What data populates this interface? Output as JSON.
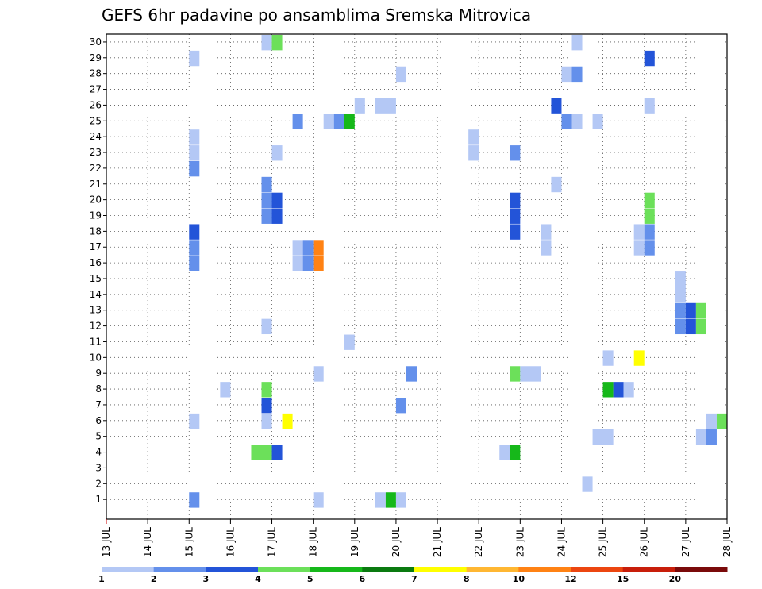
{
  "chart_data": {
    "type": "heatmap",
    "title": "GEFS 6hr padavine po ansamblima Sremska Mitrovica",
    "xlabel": "",
    "ylabel": "",
    "x_ticks": [
      "13 JUL",
      "14 JUL",
      "15 JUL",
      "16 JUL",
      "17 JUL",
      "18 JUL",
      "19 JUL",
      "20 JUL",
      "21 JUL",
      "22 JUL",
      "23 JUL",
      "24 JUL",
      "25 JUL",
      "26 JUL",
      "27 JUL",
      "28 JUL"
    ],
    "x_range": [
      13,
      28
    ],
    "y_ticks": [
      "1",
      "2",
      "3",
      "4",
      "5",
      "6",
      "7",
      "8",
      "9",
      "10",
      "11",
      "12",
      "13",
      "14",
      "15",
      "16",
      "17",
      "18",
      "19",
      "20",
      "21",
      "22",
      "23",
      "24",
      "25",
      "26",
      "27",
      "28",
      "29",
      "30"
    ],
    "y_range": [
      1,
      30
    ],
    "grid": true,
    "legend_placement": "bottom",
    "legend": {
      "labels": [
        "1",
        "2",
        "3",
        "4",
        "5",
        "6",
        "7",
        "8",
        "10",
        "12",
        "15",
        "20"
      ],
      "colors": [
        "#b4c8f5",
        "#6490eb",
        "#2354d8",
        "#6ce05a",
        "#16b81a",
        "#0a7a10",
        "#ffff00",
        "#ffb732",
        "#ff8214",
        "#ec4610",
        "#c81e0a",
        "#7a0a0a"
      ]
    },
    "cells": [
      [
        30,
        16.75,
        0.25,
        1
      ],
      [
        30,
        17.0,
        0.25,
        4
      ],
      [
        30,
        24.25,
        0.25,
        1
      ],
      [
        29,
        15.0,
        0.25,
        1
      ],
      [
        29,
        26.0,
        0.25,
        3
      ],
      [
        28,
        20.0,
        0.25,
        1
      ],
      [
        28,
        24.0,
        0.25,
        1
      ],
      [
        28,
        24.25,
        0.25,
        2
      ],
      [
        26,
        19.0,
        0.25,
        1
      ],
      [
        26,
        19.5,
        0.5,
        1
      ],
      [
        26,
        23.75,
        0.25,
        3
      ],
      [
        26,
        26.0,
        0.25,
        1
      ],
      [
        25,
        17.5,
        0.25,
        2
      ],
      [
        25,
        18.25,
        0.25,
        1
      ],
      [
        25,
        18.5,
        0.25,
        2
      ],
      [
        25,
        18.75,
        0.25,
        5
      ],
      [
        25,
        24.0,
        0.25,
        2
      ],
      [
        25,
        24.25,
        0.25,
        1
      ],
      [
        25,
        24.75,
        0.25,
        1
      ],
      [
        24,
        15.0,
        0.25,
        1
      ],
      [
        24,
        21.75,
        0.25,
        1
      ],
      [
        23,
        15.0,
        0.25,
        1
      ],
      [
        23,
        17.0,
        0.25,
        1
      ],
      [
        23,
        21.75,
        0.25,
        1
      ],
      [
        23,
        22.75,
        0.25,
        2
      ],
      [
        22,
        15.0,
        0.25,
        2
      ],
      [
        21,
        16.75,
        0.25,
        2
      ],
      [
        21,
        23.75,
        0.25,
        1
      ],
      [
        20,
        16.75,
        0.25,
        2
      ],
      [
        20,
        17.0,
        0.25,
        3
      ],
      [
        20,
        22.75,
        0.25,
        3
      ],
      [
        20,
        26.0,
        0.25,
        4
      ],
      [
        19,
        16.75,
        0.25,
        2
      ],
      [
        19,
        17.0,
        0.25,
        3
      ],
      [
        19,
        22.75,
        0.25,
        3
      ],
      [
        19,
        26.0,
        0.25,
        4
      ],
      [
        18,
        15.0,
        0.25,
        3
      ],
      [
        18,
        22.75,
        0.25,
        3
      ],
      [
        18,
        23.5,
        0.25,
        1
      ],
      [
        18,
        25.75,
        0.25,
        1
      ],
      [
        18,
        26.0,
        0.25,
        2
      ],
      [
        17,
        15.0,
        0.25,
        2
      ],
      [
        17,
        17.5,
        0.25,
        1
      ],
      [
        17,
        17.75,
        0.25,
        2
      ],
      [
        17,
        18.0,
        0.25,
        9
      ],
      [
        17,
        23.5,
        0.25,
        1
      ],
      [
        17,
        25.75,
        0.25,
        1
      ],
      [
        17,
        26.0,
        0.25,
        2
      ],
      [
        16,
        15.0,
        0.25,
        2
      ],
      [
        16,
        17.5,
        0.25,
        1
      ],
      [
        16,
        17.75,
        0.25,
        2
      ],
      [
        16,
        18.0,
        0.25,
        9
      ],
      [
        15,
        26.75,
        0.25,
        1
      ],
      [
        14,
        26.75,
        0.25,
        1
      ],
      [
        13,
        26.75,
        0.25,
        2
      ],
      [
        13,
        27.0,
        0.25,
        3
      ],
      [
        13,
        27.25,
        0.25,
        4
      ],
      [
        12,
        16.75,
        0.25,
        1
      ],
      [
        12,
        26.75,
        0.25,
        2
      ],
      [
        12,
        27.0,
        0.25,
        3
      ],
      [
        12,
        27.25,
        0.25,
        4
      ],
      [
        11,
        18.75,
        0.25,
        1
      ],
      [
        10,
        25.0,
        0.25,
        1
      ],
      [
        10,
        25.75,
        0.25,
        7
      ],
      [
        9,
        18.0,
        0.25,
        1
      ],
      [
        9,
        20.25,
        0.25,
        2
      ],
      [
        9,
        22.75,
        0.25,
        4
      ],
      [
        9,
        23.0,
        0.5,
        1
      ],
      [
        8,
        15.75,
        0.25,
        1
      ],
      [
        8,
        16.75,
        0.25,
        4
      ],
      [
        8,
        25.0,
        0.25,
        5
      ],
      [
        8,
        25.25,
        0.25,
        3
      ],
      [
        8,
        25.5,
        0.25,
        1
      ],
      [
        7,
        16.75,
        0.25,
        3
      ],
      [
        7,
        20.0,
        0.25,
        2
      ],
      [
        6,
        15.0,
        0.25,
        1
      ],
      [
        6,
        16.75,
        0.25,
        1
      ],
      [
        6,
        17.25,
        0.25,
        7
      ],
      [
        6,
        27.5,
        0.25,
        1
      ],
      [
        6,
        27.75,
        0.25,
        4
      ],
      [
        5,
        24.75,
        0.5,
        1
      ],
      [
        5,
        27.25,
        0.25,
        1
      ],
      [
        5,
        27.5,
        0.25,
        2
      ],
      [
        4,
        16.5,
        0.5,
        4
      ],
      [
        4,
        17.0,
        0.25,
        3
      ],
      [
        4,
        22.5,
        0.25,
        1
      ],
      [
        4,
        22.75,
        0.25,
        5
      ],
      [
        2,
        24.5,
        0.25,
        1
      ],
      [
        1,
        15.0,
        0.25,
        2
      ],
      [
        1,
        18.0,
        0.25,
        1
      ],
      [
        1,
        19.5,
        0.25,
        1
      ],
      [
        1,
        19.75,
        0.25,
        5
      ],
      [
        1,
        20.0,
        0.25,
        1
      ]
    ]
  }
}
